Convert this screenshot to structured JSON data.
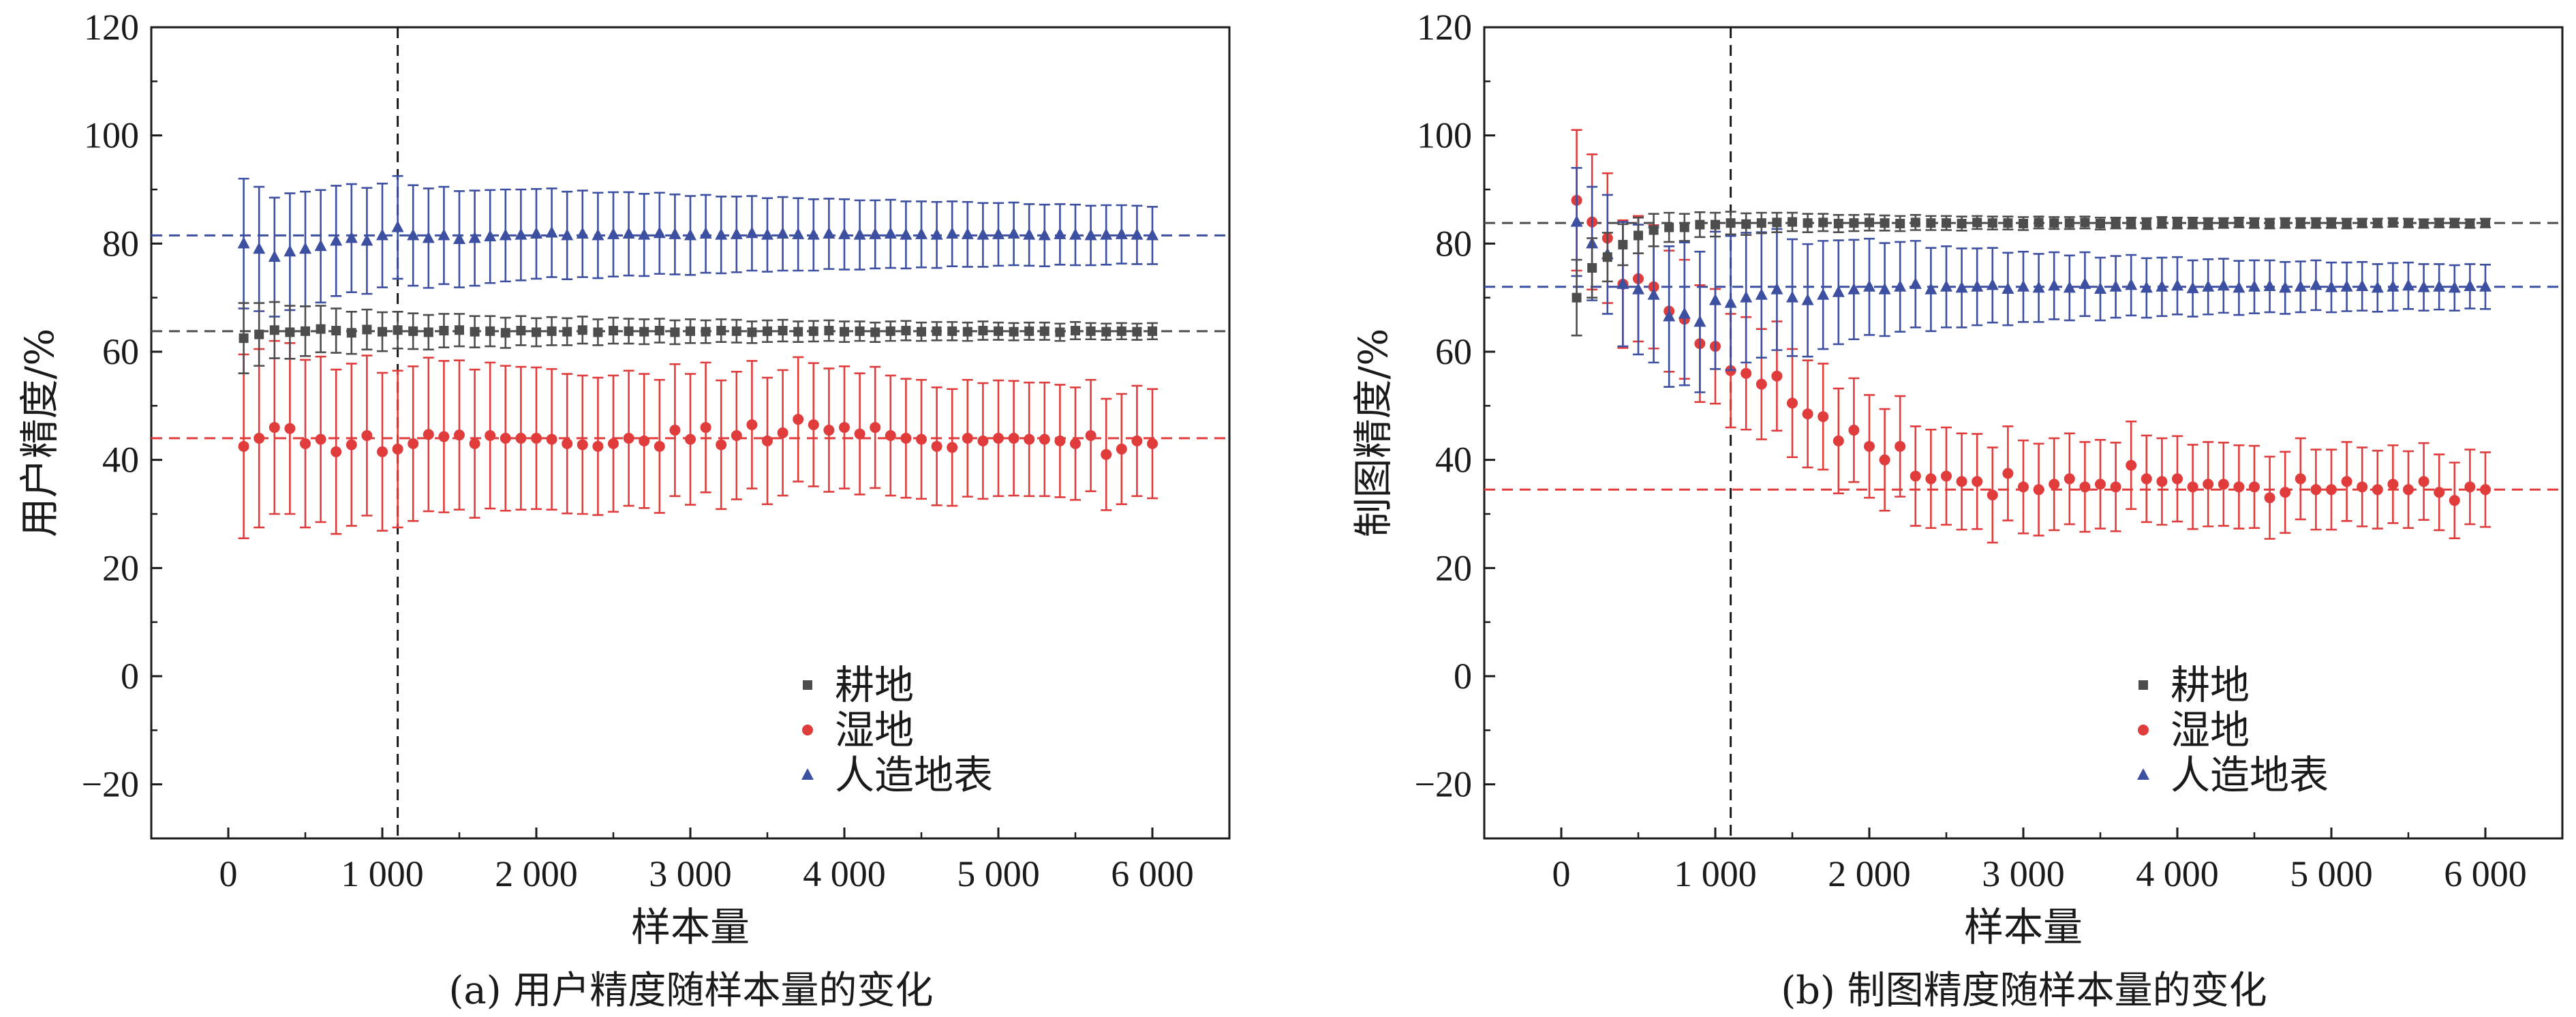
{
  "chart_data": [
    {
      "type": "scatter",
      "panel": "a",
      "caption": "(a) 用户精度随样本量的变化",
      "xlabel": "样本量",
      "ylabel": "用户精度/%",
      "xlim": [
        -500,
        6500
      ],
      "ylim": [
        -30,
        120
      ],
      "xticks": [
        0,
        1000,
        2000,
        3000,
        4000,
        5000,
        6000
      ],
      "xtick_labels": [
        "0",
        "1 000",
        "2 000",
        "3 000",
        "4 000",
        "5 000",
        "6 000"
      ],
      "yticks": [
        -20,
        0,
        20,
        40,
        60,
        80,
        100,
        120
      ],
      "ytick_labels": [
        "−20",
        "0",
        "20",
        "40",
        "60",
        "80",
        "100",
        "120"
      ],
      "vline_x": 1100,
      "x": [
        100,
        200,
        300,
        400,
        500,
        600,
        700,
        800,
        900,
        1000,
        1100,
        1200,
        1300,
        1400,
        1500,
        1600,
        1700,
        1800,
        1900,
        2000,
        2100,
        2200,
        2300,
        2400,
        2500,
        2600,
        2700,
        2800,
        2900,
        3000,
        3100,
        3200,
        3300,
        3400,
        3500,
        3600,
        3700,
        3800,
        3900,
        4000,
        4100,
        4200,
        4300,
        4400,
        4500,
        4600,
        4700,
        4800,
        4900,
        5000,
        5100,
        5200,
        5300,
        5400,
        5500,
        5600,
        5700,
        5800,
        5900,
        6000
      ],
      "series": [
        {
          "name": "耕地",
          "color": "#4d4d4d",
          "marker": "square",
          "hline": 63.8,
          "values": [
            62.5,
            63.2,
            64.0,
            63.6,
            63.8,
            64.2,
            63.9,
            63.5,
            64.1,
            63.7,
            64.0,
            63.8,
            63.6,
            63.9,
            64.0,
            63.7,
            63.8,
            63.5,
            63.9,
            63.6,
            63.8,
            63.7,
            64.0,
            63.6,
            63.9,
            63.8,
            63.7,
            63.9,
            63.6,
            63.8,
            63.7,
            63.9,
            63.8,
            63.6,
            63.8,
            63.9,
            63.7,
            63.8,
            63.9,
            63.7,
            63.8,
            63.6,
            63.8,
            63.9,
            63.7,
            63.8,
            63.8,
            63.7,
            63.9,
            63.8,
            63.7,
            63.8,
            63.8,
            63.6,
            63.9,
            63.8,
            63.7,
            63.8,
            63.7,
            63.8
          ],
          "errors": [
            6.5,
            5.8,
            5.2,
            4.9,
            4.6,
            4.3,
            4.1,
            3.9,
            3.7,
            3.6,
            3.4,
            3.3,
            3.2,
            3.1,
            3.0,
            2.9,
            2.8,
            2.8,
            2.7,
            2.6,
            2.6,
            2.5,
            2.5,
            2.4,
            2.4,
            2.3,
            2.3,
            2.2,
            2.2,
            2.2,
            2.1,
            2.1,
            2.1,
            2.0,
            2.0,
            2.0,
            1.9,
            1.9,
            1.9,
            1.9,
            1.8,
            1.8,
            1.8,
            1.8,
            1.7,
            1.7,
            1.7,
            1.7,
            1.7,
            1.6,
            1.6,
            1.6,
            1.6,
            1.6,
            1.6,
            1.5,
            1.5,
            1.5,
            1.5,
            1.5
          ]
        },
        {
          "name": "湿地",
          "color": "#e03c3c",
          "marker": "circle",
          "hline": 44.0,
          "values": [
            42.5,
            44.0,
            46.0,
            45.8,
            43.0,
            43.8,
            41.5,
            42.8,
            44.5,
            41.5,
            42.0,
            43.0,
            44.7,
            44.3,
            44.6,
            43.0,
            44.5,
            44.0,
            44.0,
            44.0,
            43.8,
            43.0,
            42.8,
            42.5,
            43.0,
            44.0,
            43.5,
            42.5,
            45.5,
            43.8,
            46.0,
            42.8,
            44.5,
            46.5,
            43.5,
            45.0,
            47.5,
            46.5,
            45.5,
            46.0,
            44.8,
            46.0,
            44.5,
            44.0,
            43.8,
            42.5,
            42.3,
            44.0,
            43.5,
            44.0,
            44.0,
            43.8,
            43.8,
            43.5,
            43.0,
            44.5,
            41.0,
            42.0,
            43.5,
            43.0
          ],
          "errors": [
            17.0,
            16.5,
            16.0,
            15.8,
            15.5,
            15.3,
            15.2,
            15.0,
            14.8,
            14.6,
            14.5,
            14.3,
            14.2,
            14.0,
            13.8,
            13.7,
            13.5,
            13.4,
            13.2,
            13.1,
            13.0,
            12.9,
            12.8,
            12.7,
            12.6,
            12.5,
            12.4,
            12.3,
            12.2,
            12.1,
            12.0,
            11.9,
            11.8,
            11.8,
            11.7,
            11.6,
            11.5,
            11.4,
            11.4,
            11.3,
            11.2,
            11.2,
            11.1,
            11.0,
            11.0,
            10.9,
            10.8,
            10.8,
            10.7,
            10.7,
            10.6,
            10.5,
            10.5,
            10.4,
            10.4,
            10.3,
            10.3,
            10.2,
            10.2,
            10.1
          ]
        },
        {
          "name": "人造地表",
          "color": "#3d4fa0",
          "marker": "triangle",
          "hline": 81.5,
          "values": [
            80.0,
            79.0,
            77.5,
            78.5,
            79.0,
            79.5,
            80.5,
            81.0,
            80.5,
            81.5,
            83.0,
            81.5,
            81.0,
            81.5,
            80.8,
            81.0,
            81.3,
            81.5,
            81.6,
            81.8,
            82.0,
            81.5,
            81.8,
            81.5,
            81.7,
            81.8,
            81.6,
            81.9,
            81.7,
            81.5,
            81.8,
            81.6,
            81.7,
            81.9,
            81.6,
            81.8,
            81.7,
            81.6,
            81.8,
            81.7,
            81.6,
            81.7,
            81.8,
            81.6,
            81.7,
            81.6,
            81.8,
            81.7,
            81.6,
            81.7,
            81.8,
            81.6,
            81.5,
            81.7,
            81.6,
            81.5,
            81.6,
            81.7,
            81.6,
            81.5
          ],
          "errors": [
            12.0,
            11.5,
            11.0,
            10.8,
            10.6,
            10.4,
            10.2,
            10.0,
            9.8,
            9.6,
            9.5,
            9.3,
            9.2,
            9.0,
            8.9,
            8.8,
            8.6,
            8.5,
            8.4,
            8.3,
            8.2,
            8.1,
            8.0,
            7.9,
            7.8,
            7.7,
            7.6,
            7.5,
            7.4,
            7.3,
            7.2,
            7.1,
            7.0,
            6.9,
            6.8,
            6.8,
            6.7,
            6.6,
            6.5,
            6.5,
            6.4,
            6.3,
            6.3,
            6.2,
            6.1,
            6.1,
            6.0,
            6.0,
            5.9,
            5.8,
            5.8,
            5.7,
            5.7,
            5.6,
            5.6,
            5.5,
            5.5,
            5.4,
            5.4,
            5.3
          ]
        }
      ]
    },
    {
      "type": "scatter",
      "panel": "b",
      "caption": "(b) 制图精度随样本量的变化",
      "xlabel": "样本量",
      "ylabel": "制图精度/%",
      "xlim": [
        -500,
        6500
      ],
      "ylim": [
        -30,
        120
      ],
      "xticks": [
        0,
        1000,
        2000,
        3000,
        4000,
        5000,
        6000
      ],
      "xtick_labels": [
        "0",
        "1 000",
        "2 000",
        "3 000",
        "4 000",
        "5 000",
        "6 000"
      ],
      "yticks": [
        -20,
        0,
        20,
        40,
        60,
        80,
        100,
        120
      ],
      "ytick_labels": [
        "−20",
        "0",
        "20",
        "40",
        "60",
        "80",
        "100",
        "120"
      ],
      "vline_x": 1100,
      "x": [
        100,
        200,
        300,
        400,
        500,
        600,
        700,
        800,
        900,
        1000,
        1100,
        1200,
        1300,
        1400,
        1500,
        1600,
        1700,
        1800,
        1900,
        2000,
        2100,
        2200,
        2300,
        2400,
        2500,
        2600,
        2700,
        2800,
        2900,
        3000,
        3100,
        3200,
        3300,
        3400,
        3500,
        3600,
        3700,
        3800,
        3900,
        4000,
        4100,
        4200,
        4300,
        4400,
        4500,
        4600,
        4700,
        4800,
        4900,
        5000,
        5100,
        5200,
        5300,
        5400,
        5500,
        5600,
        5700,
        5800,
        5900,
        6000
      ],
      "series": [
        {
          "name": "耕地",
          "color": "#4d4d4d",
          "marker": "square",
          "hline": 83.8,
          "values": [
            70.0,
            75.5,
            77.5,
            79.8,
            81.5,
            82.5,
            83.0,
            83.0,
            83.5,
            83.5,
            83.8,
            83.6,
            83.8,
            83.9,
            84.0,
            83.8,
            83.9,
            83.7,
            83.8,
            83.9,
            83.8,
            83.7,
            83.9,
            83.8,
            83.8,
            83.7,
            83.9,
            83.8,
            83.8,
            83.7,
            83.9,
            83.8,
            83.8,
            83.9,
            83.7,
            83.8,
            83.8,
            83.7,
            83.9,
            83.8,
            83.8,
            83.7,
            83.8,
            83.9,
            83.8,
            83.7,
            83.8,
            83.8,
            83.8,
            83.8,
            83.7,
            83.8,
            83.8,
            83.9,
            83.8,
            83.7,
            83.8,
            83.8,
            83.7,
            83.8
          ],
          "errors": [
            7.0,
            5.5,
            4.5,
            3.8,
            3.3,
            3.0,
            2.7,
            2.5,
            2.3,
            2.2,
            2.1,
            2.0,
            1.9,
            1.8,
            1.7,
            1.7,
            1.6,
            1.6,
            1.5,
            1.5,
            1.4,
            1.4,
            1.4,
            1.3,
            1.3,
            1.3,
            1.2,
            1.2,
            1.2,
            1.2,
            1.1,
            1.1,
            1.1,
            1.1,
            1.1,
            1.0,
            1.0,
            1.0,
            1.0,
            1.0,
            1.0,
            1.0,
            0.9,
            0.9,
            0.9,
            0.9,
            0.9,
            0.9,
            0.9,
            0.9,
            0.9,
            0.8,
            0.8,
            0.8,
            0.8,
            0.8,
            0.8,
            0.8,
            0.8,
            0.8
          ]
        },
        {
          "name": "湿地",
          "color": "#e03c3c",
          "marker": "circle",
          "hline": 34.5,
          "values": [
            88.0,
            84.0,
            81.0,
            72.5,
            73.5,
            72.0,
            67.5,
            66.0,
            61.5,
            61.0,
            56.5,
            56.0,
            54.0,
            55.5,
            50.5,
            48.5,
            48.0,
            43.5,
            45.5,
            42.5,
            40.0,
            42.5,
            37.0,
            36.5,
            37.0,
            36.0,
            36.0,
            33.5,
            37.5,
            35.0,
            34.5,
            35.5,
            36.5,
            35.0,
            35.5,
            35.0,
            39.0,
            36.5,
            36.0,
            36.5,
            35.0,
            35.5,
            35.5,
            35.0,
            35.0,
            33.0,
            34.0,
            36.5,
            34.5,
            34.5,
            36.0,
            35.0,
            34.5,
            35.5,
            34.5,
            36.0,
            34.0,
            32.5,
            35.0,
            34.5
          ],
          "errors": [
            13.0,
            12.5,
            12.0,
            11.8,
            11.6,
            11.4,
            11.2,
            11.0,
            10.8,
            10.6,
            10.5,
            10.4,
            10.2,
            10.1,
            10.0,
            9.9,
            9.8,
            9.7,
            9.6,
            9.5,
            9.4,
            9.3,
            9.2,
            9.1,
            9.0,
            8.9,
            8.8,
            8.8,
            8.7,
            8.6,
            8.5,
            8.5,
            8.4,
            8.3,
            8.2,
            8.2,
            8.1,
            8.0,
            8.0,
            7.9,
            7.8,
            7.8,
            7.7,
            7.7,
            7.6,
            7.6,
            7.5,
            7.5,
            7.4,
            7.4,
            7.3,
            7.3,
            7.2,
            7.2,
            7.1,
            7.1,
            7.0,
            7.0,
            6.9,
            6.9
          ]
        },
        {
          "name": "人造地表",
          "color": "#3d4fa0",
          "marker": "triangle",
          "hline": 72.0,
          "values": [
            84.0,
            80.0,
            78.0,
            72.5,
            71.5,
            70.5,
            66.5,
            67.0,
            65.5,
            69.5,
            69.0,
            70.0,
            70.5,
            71.5,
            70.0,
            69.5,
            70.5,
            71.0,
            71.5,
            72.0,
            71.5,
            72.0,
            72.5,
            71.5,
            72.0,
            71.8,
            72.0,
            72.3,
            71.6,
            72.0,
            71.8,
            72.2,
            71.8,
            72.5,
            71.6,
            72.0,
            72.3,
            71.8,
            72.0,
            72.2,
            71.7,
            72.0,
            72.2,
            71.8,
            72.0,
            72.1,
            71.8,
            72.0,
            72.3,
            71.9,
            72.0,
            72.1,
            71.8,
            72.0,
            72.2,
            71.9,
            72.0,
            71.8,
            72.1,
            72.0
          ],
          "errors": [
            10.0,
            10.5,
            11.0,
            11.5,
            12.0,
            12.5,
            13.0,
            13.2,
            13.0,
            12.7,
            12.4,
            12.0,
            11.6,
            11.2,
            10.8,
            10.4,
            10.0,
            9.6,
            9.2,
            8.9,
            8.6,
            8.3,
            8.0,
            7.7,
            7.5,
            7.3,
            7.1,
            6.9,
            6.7,
            6.5,
            6.3,
            6.2,
            6.0,
            5.9,
            5.8,
            5.7,
            5.6,
            5.5,
            5.4,
            5.3,
            5.2,
            5.1,
            5.0,
            5.0,
            4.9,
            4.8,
            4.8,
            4.7,
            4.6,
            4.6,
            4.5,
            4.5,
            4.4,
            4.4,
            4.3,
            4.3,
            4.2,
            4.2,
            4.1,
            4.1
          ]
        }
      ]
    }
  ]
}
